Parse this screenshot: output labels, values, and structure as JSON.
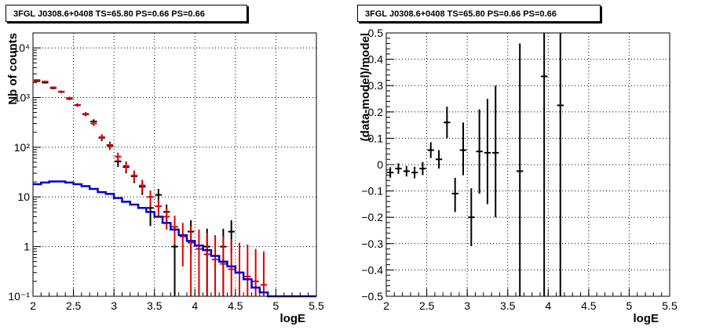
{
  "panels": [
    {
      "title": "3FGL J0308.6+0408 TS=65.80 PS=0.66 PS=0.66",
      "chart_data": {
        "type": "scatter",
        "xlabel": "logE",
        "ylabel": "Nb of counts",
        "xlim": [
          2,
          5.5
        ],
        "ylim": [
          0.1,
          20000
        ],
        "log_y": true,
        "grid": true,
        "x_ticks": [
          "2",
          "2.5",
          "3",
          "3.5",
          "4",
          "4.5",
          "5",
          "5.5"
        ],
        "y_ticks": [
          {
            "value": 0.1,
            "label": "10⁻¹"
          },
          {
            "value": 1,
            "label": "1"
          },
          {
            "value": 10,
            "label": "10"
          },
          {
            "value": 100,
            "label": "10²"
          },
          {
            "value": 1000,
            "label": "10³"
          },
          {
            "value": 10000,
            "label": "10⁴"
          }
        ],
        "bin_width": 0.1,
        "series": [
          {
            "color": "#000000",
            "style": "errorbar",
            "points": [
              {
                "x": 2.05,
                "y": 2150,
                "lo": 2050,
                "hi": 2250
              },
              {
                "x": 2.15,
                "y": 2000,
                "lo": 1910,
                "hi": 2090
              },
              {
                "x": 2.25,
                "y": 1550,
                "lo": 1470,
                "hi": 1630
              },
              {
                "x": 2.35,
                "y": 1300,
                "lo": 1230,
                "hi": 1370
              },
              {
                "x": 2.45,
                "y": 950,
                "lo": 890,
                "hi": 1010
              },
              {
                "x": 2.55,
                "y": 710,
                "lo": 660,
                "hi": 760
              },
              {
                "x": 2.65,
                "y": 460,
                "lo": 420,
                "hi": 500
              },
              {
                "x": 2.75,
                "y": 330,
                "lo": 295,
                "hi": 365
              },
              {
                "x": 2.85,
                "y": 155,
                "lo": 133,
                "hi": 178
              },
              {
                "x": 2.95,
                "y": 110,
                "lo": 92,
                "hi": 128
              },
              {
                "x": 3.05,
                "y": 52,
                "lo": 40,
                "hi": 64
              },
              {
                "x": 3.15,
                "y": 40,
                "lo": 30,
                "hi": 50
              },
              {
                "x": 3.25,
                "y": 26,
                "lo": 19,
                "hi": 33
              },
              {
                "x": 3.35,
                "y": 16,
                "lo": 11,
                "hi": 21
              },
              {
                "x": 3.45,
                "y": 6,
                "lo": 2.6,
                "hi": 8.5
              },
              {
                "x": 3.55,
                "y": 11,
                "lo": 7.6,
                "hi": 14.5
              },
              {
                "x": 3.65,
                "y": 5,
                "lo": 3,
                "hi": 7
              },
              {
                "x": 3.75,
                "y": 1,
                "lo": 0.1,
                "hi": 2.3
              },
              {
                "x": 3.95,
                "y": 2,
                "lo": 0.7,
                "hi": 3.4
              },
              {
                "x": 4.15,
                "y": 1,
                "lo": 0.1,
                "hi": 2.3
              },
              {
                "x": 4.35,
                "y": 1,
                "lo": 0.1,
                "hi": 2.3
              },
              {
                "x": 4.45,
                "y": 2,
                "lo": 0.7,
                "hi": 3.4
              }
            ]
          },
          {
            "color": "#e00000",
            "style": "errorbar",
            "points": [
              {
                "x": 2.05,
                "y": 2250,
                "lo": 2150,
                "hi": 2350
              },
              {
                "x": 2.15,
                "y": 2100,
                "lo": 2000,
                "hi": 2200
              },
              {
                "x": 2.25,
                "y": 1600,
                "lo": 1520,
                "hi": 1680
              },
              {
                "x": 2.35,
                "y": 1320,
                "lo": 1250,
                "hi": 1390
              },
              {
                "x": 2.45,
                "y": 980,
                "lo": 920,
                "hi": 1040
              },
              {
                "x": 2.55,
                "y": 700,
                "lo": 650,
                "hi": 750
              },
              {
                "x": 2.65,
                "y": 470,
                "lo": 430,
                "hi": 510
              },
              {
                "x": 2.75,
                "y": 300,
                "lo": 268,
                "hi": 332
              },
              {
                "x": 2.85,
                "y": 160,
                "lo": 138,
                "hi": 182
              },
              {
                "x": 2.95,
                "y": 105,
                "lo": 88,
                "hi": 122
              },
              {
                "x": 3.05,
                "y": 65,
                "lo": 52,
                "hi": 78
              },
              {
                "x": 3.15,
                "y": 42,
                "lo": 32,
                "hi": 52
              },
              {
                "x": 3.25,
                "y": 27,
                "lo": 20,
                "hi": 34
              },
              {
                "x": 3.35,
                "y": 17,
                "lo": 12,
                "hi": 22
              },
              {
                "x": 3.45,
                "y": 10,
                "lo": 6.5,
                "hi": 13.5
              },
              {
                "x": 3.55,
                "y": 6.5,
                "lo": 4,
                "hi": 9
              },
              {
                "x": 3.65,
                "y": 4,
                "lo": 2.2,
                "hi": 6
              },
              {
                "x": 3.75,
                "y": 2.5,
                "lo": 1.1,
                "hi": 4.2
              },
              {
                "x": 3.85,
                "y": 1.6,
                "lo": 0.4,
                "hi": 3
              },
              {
                "x": 3.95,
                "y": 1.2,
                "lo": 0.1,
                "hi": 2.6
              },
              {
                "x": 4.05,
                "y": 0.9,
                "lo": 0.1,
                "hi": 2.2
              },
              {
                "x": 4.15,
                "y": 0.7,
                "lo": 0.1,
                "hi": 1.9
              },
              {
                "x": 4.25,
                "y": 0.55,
                "lo": 0.1,
                "hi": 1.7
              },
              {
                "x": 4.35,
                "y": 0.45,
                "lo": 0.1,
                "hi": 1.6
              },
              {
                "x": 4.45,
                "y": 0.35,
                "lo": 0.1,
                "hi": 1.4
              },
              {
                "x": 4.55,
                "y": 0.3,
                "lo": 0.1,
                "hi": 1.2
              },
              {
                "x": 4.65,
                "y": 0.25,
                "lo": 0.1,
                "hi": 1.1
              },
              {
                "x": 4.75,
                "y": 0.2,
                "lo": 0.1,
                "hi": 0.9
              },
              {
                "x": 4.85,
                "y": 0.17,
                "lo": 0.1,
                "hi": 0.8
              }
            ]
          },
          {
            "color": "#0000d0",
            "style": "step",
            "points": [
              {
                "x": 2.0,
                "y": 18
              },
              {
                "x": 2.1,
                "y": 19.5
              },
              {
                "x": 2.2,
                "y": 20.5
              },
              {
                "x": 2.3,
                "y": 20.5
              },
              {
                "x": 2.4,
                "y": 19.5
              },
              {
                "x": 2.5,
                "y": 18
              },
              {
                "x": 2.6,
                "y": 16.5
              },
              {
                "x": 2.7,
                "y": 14.5
              },
              {
                "x": 2.8,
                "y": 12.5
              },
              {
                "x": 2.9,
                "y": 11.5
              },
              {
                "x": 3.0,
                "y": 9.5
              },
              {
                "x": 3.1,
                "y": 8
              },
              {
                "x": 3.2,
                "y": 7
              },
              {
                "x": 3.3,
                "y": 6
              },
              {
                "x": 3.4,
                "y": 5
              },
              {
                "x": 3.5,
                "y": 4
              },
              {
                "x": 3.6,
                "y": 3
              },
              {
                "x": 3.7,
                "y": 2.2
              },
              {
                "x": 3.8,
                "y": 1.7
              },
              {
                "x": 3.9,
                "y": 1.3
              },
              {
                "x": 4.0,
                "y": 1.05
              },
              {
                "x": 4.1,
                "y": 0.85
              },
              {
                "x": 4.2,
                "y": 0.65
              },
              {
                "x": 4.3,
                "y": 0.5
              },
              {
                "x": 4.4,
                "y": 0.4
              },
              {
                "x": 4.5,
                "y": 0.3
              },
              {
                "x": 4.6,
                "y": 0.22
              },
              {
                "x": 4.7,
                "y": 0.15
              },
              {
                "x": 4.8,
                "y": 0.12
              },
              {
                "x": 4.9,
                "y": 0.1
              },
              {
                "x": 5.0,
                "y": 0.1
              },
              {
                "x": 5.1,
                "y": 0.1
              },
              {
                "x": 5.2,
                "y": 0.1
              },
              {
                "x": 5.3,
                "y": 0.1
              },
              {
                "x": 5.4,
                "y": 0.1
              }
            ]
          }
        ]
      }
    },
    {
      "title": "3FGL J0308.6+0408 TS=65.80 PS=0.66 PS=0.66",
      "chart_data": {
        "type": "scatter",
        "xlabel": "logE",
        "ylabel": "(data-model)/model",
        "xlim": [
          2,
          5.5
        ],
        "ylim": [
          -0.5,
          0.5
        ],
        "log_y": false,
        "grid": true,
        "x_ticks": [
          "2",
          "2.5",
          "3",
          "3.5",
          "4",
          "4.5",
          "5",
          "5.5"
        ],
        "y_ticks": [
          {
            "value": -0.5,
            "label": "−0.5"
          },
          {
            "value": -0.4,
            "label": "−0.4"
          },
          {
            "value": -0.3,
            "label": "−0.3"
          },
          {
            "value": -0.2,
            "label": "−0.2"
          },
          {
            "value": -0.1,
            "label": "−0.1"
          },
          {
            "value": 0,
            "label": "0"
          },
          {
            "value": 0.1,
            "label": "0.1"
          },
          {
            "value": 0.2,
            "label": "0.2"
          },
          {
            "value": 0.3,
            "label": "0.3"
          },
          {
            "value": 0.4,
            "label": "0.4"
          },
          {
            "value": 0.5,
            "label": "0.5"
          }
        ],
        "bin_width": 0.1,
        "series": [
          {
            "color": "#000000",
            "style": "errorbar",
            "points": [
              {
                "x": 2.05,
                "y": -0.03,
                "lo": -0.05,
                "hi": -0.01
              },
              {
                "x": 2.15,
                "y": -0.015,
                "lo": -0.035,
                "hi": 0.005
              },
              {
                "x": 2.25,
                "y": -0.025,
                "lo": -0.045,
                "hi": -0.005
              },
              {
                "x": 2.35,
                "y": -0.03,
                "lo": -0.052,
                "hi": -0.008
              },
              {
                "x": 2.45,
                "y": -0.015,
                "lo": -0.04,
                "hi": 0.01
              },
              {
                "x": 2.55,
                "y": 0.055,
                "lo": 0.025,
                "hi": 0.085
              },
              {
                "x": 2.65,
                "y": 0.02,
                "lo": -0.015,
                "hi": 0.055
              },
              {
                "x": 2.75,
                "y": 0.16,
                "lo": 0.1,
                "hi": 0.22
              },
              {
                "x": 2.85,
                "y": -0.11,
                "lo": -0.18,
                "hi": -0.05
              },
              {
                "x": 2.95,
                "y": 0.055,
                "lo": -0.04,
                "hi": 0.16
              },
              {
                "x": 3.05,
                "y": -0.2,
                "lo": -0.31,
                "hi": -0.09
              },
              {
                "x": 3.15,
                "y": 0.05,
                "lo": -0.11,
                "hi": 0.21
              },
              {
                "x": 3.25,
                "y": 0.045,
                "lo": -0.15,
                "hi": 0.25
              },
              {
                "x": 3.35,
                "y": 0.045,
                "lo": -0.2,
                "hi": 0.3
              },
              {
                "x": 3.65,
                "y": -0.025,
                "lo": -0.5,
                "hi": 0.46
              },
              {
                "x": 3.95,
                "y": 0.335,
                "lo": -0.5,
                "hi": 0.5
              },
              {
                "x": 4.15,
                "y": 0.225,
                "lo": -0.5,
                "hi": 0.5
              }
            ]
          }
        ]
      }
    }
  ]
}
